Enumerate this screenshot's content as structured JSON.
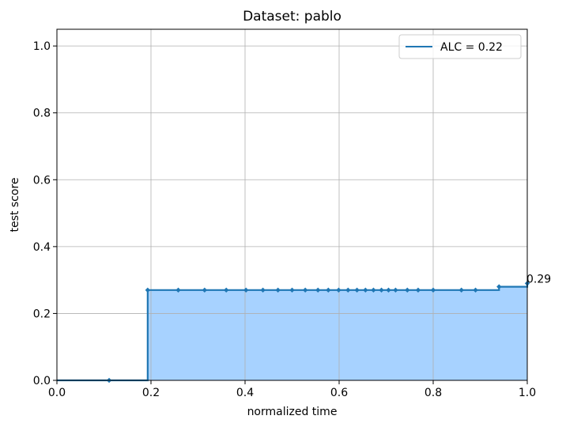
{
  "chart_data": {
    "type": "area",
    "title": "Dataset: pablo",
    "xlabel": "normalized time",
    "ylabel": "test score",
    "xlim": [
      0.0,
      1.0
    ],
    "ylim": [
      0.0,
      1.05
    ],
    "xticks": [
      "0.0",
      "0.2",
      "0.4",
      "0.6",
      "0.8",
      "1.0"
    ],
    "yticks": [
      "0.0",
      "0.2",
      "0.4",
      "0.6",
      "0.8",
      "1.0"
    ],
    "grid": true,
    "legend_position": "upper right",
    "series": [
      {
        "name": "ALC = 0.22",
        "color": "#1f77b4",
        "fill_color": "#a7d2ff",
        "step": "post",
        "x": [
          0.111,
          0.193,
          0.258,
          0.314,
          0.36,
          0.402,
          0.438,
          0.47,
          0.5,
          0.528,
          0.555,
          0.577,
          0.599,
          0.619,
          0.638,
          0.656,
          0.673,
          0.69,
          0.705,
          0.72,
          0.745,
          0.768,
          0.8,
          0.86,
          0.89,
          0.94,
          1.0
        ],
        "y": [
          0.0,
          0.27,
          0.27,
          0.27,
          0.27,
          0.27,
          0.27,
          0.27,
          0.27,
          0.27,
          0.27,
          0.27,
          0.27,
          0.27,
          0.27,
          0.27,
          0.27,
          0.27,
          0.27,
          0.27,
          0.27,
          0.27,
          0.27,
          0.27,
          0.27,
          0.28,
          0.29
        ]
      }
    ],
    "annotation": {
      "text": "0.29",
      "x": 1.0,
      "y": 0.29
    }
  }
}
